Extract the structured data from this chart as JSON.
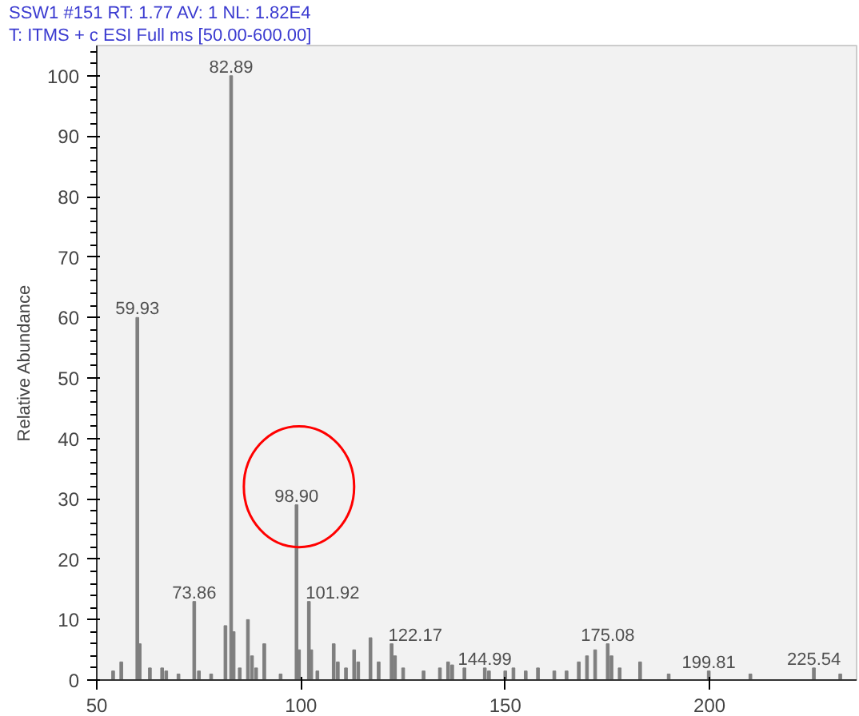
{
  "chart_data": {
    "type": "bar",
    "title": "SSW1 #151   RT: 1.77   AV: 1   NL: 1.82E4",
    "subtitle": "T: ITMS + c ESI Full ms [50.00-600.00]",
    "ylabel": "Relative Abundance",
    "x": [
      54,
      56,
      59.93,
      60.5,
      63,
      66,
      67,
      70,
      73.86,
      75,
      78,
      81.5,
      82.89,
      83.5,
      85,
      87,
      88,
      89,
      91,
      95,
      98.9,
      99.5,
      101.92,
      102.5,
      104,
      108,
      109,
      111,
      113,
      114,
      117,
      119,
      122.17,
      123,
      125,
      130,
      134,
      136,
      137,
      140,
      144.99,
      146,
      150,
      152,
      155,
      158,
      162,
      165,
      168,
      170,
      172,
      175.08,
      176,
      178,
      183,
      190,
      199.81,
      210,
      225.54,
      232
    ],
    "values": [
      1.5,
      3,
      60,
      6,
      2,
      2,
      1.5,
      1,
      13,
      1.5,
      1,
      9,
      100,
      8,
      2,
      10,
      4,
      2,
      6,
      1,
      29,
      5,
      13,
      5,
      1.5,
      6,
      3,
      2,
      5,
      3,
      7,
      3,
      6,
      4,
      2,
      1.5,
      2,
      3,
      2.5,
      2,
      2,
      1.5,
      1.5,
      2,
      1.5,
      2,
      1.5,
      1.5,
      3,
      4,
      5,
      6,
      4,
      2,
      3,
      1,
      1.5,
      1,
      2,
      1
    ],
    "annotations": [
      {
        "text": "59.93",
        "x": 59.93,
        "y": 60
      },
      {
        "text": "73.86",
        "x": 73.86,
        "y": 13
      },
      {
        "text": "82.89",
        "x": 82.89,
        "y": 100
      },
      {
        "text": "98.90",
        "x": 98.9,
        "y": 29
      },
      {
        "text": "101.92",
        "x": 101.92,
        "y": 13
      },
      {
        "text": "122.17",
        "x": 122.17,
        "y": 6
      },
      {
        "text": "144.99",
        "x": 144.99,
        "y": 2
      },
      {
        "text": "175.08",
        "x": 175.08,
        "y": 6
      },
      {
        "text": "199.81",
        "x": 199.81,
        "y": 1.5
      },
      {
        "text": "225.54",
        "x": 225.54,
        "y": 2
      }
    ],
    "color": "#7f7f7f",
    "xlim": [
      50,
      236
    ],
    "ylim": [
      0,
      105
    ],
    "xticks": [
      50,
      100,
      150,
      200
    ],
    "yticks": [
      0,
      10,
      20,
      30,
      40,
      50,
      60,
      70,
      80,
      90,
      100
    ],
    "grid": false
  }
}
